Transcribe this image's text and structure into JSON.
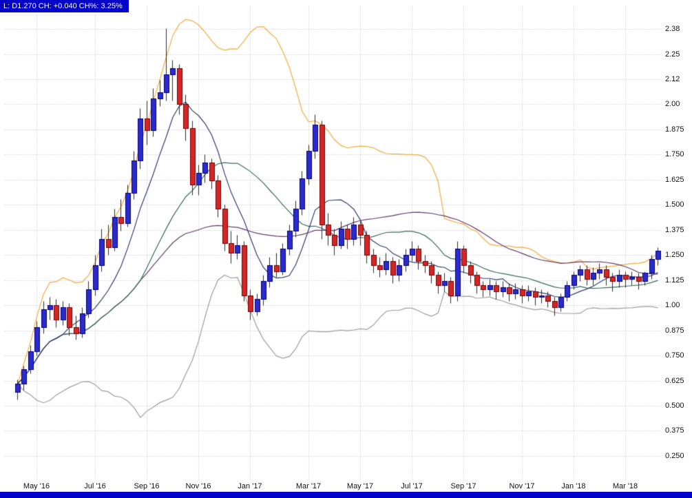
{
  "header": {
    "quote_line": "L: D1.270 CH: +0.040 CH%: 3.25%",
    "badge_bg": "#0000c8"
  },
  "chart_data": {
    "type": "candlestick",
    "title": "",
    "ohlc_format": [
      "open",
      "high",
      "low",
      "close"
    ],
    "last": {
      "price": "1.270",
      "change": "+0.040",
      "change_pct": "3.25%"
    },
    "ylim": [
      0.133,
      2.492
    ],
    "grid": true,
    "y_ticks": [
      {
        "label": "2.38",
        "value": 2.375
      },
      {
        "label": "2.25",
        "value": 2.25
      },
      {
        "label": "2.12",
        "value": 2.125
      },
      {
        "label": "2.00",
        "value": 2.0
      },
      {
        "label": "1.875",
        "value": 1.875
      },
      {
        "label": "1.750",
        "value": 1.75
      },
      {
        "label": "1.625",
        "value": 1.625
      },
      {
        "label": "1.500",
        "value": 1.5
      },
      {
        "label": "1.375",
        "value": 1.375
      },
      {
        "label": "1.250",
        "value": 1.25
      },
      {
        "label": "1.125",
        "value": 1.125
      },
      {
        "label": "1.00",
        "value": 1.0
      },
      {
        "label": "0.875",
        "value": 0.875
      },
      {
        "label": "0.750",
        "value": 0.75
      },
      {
        "label": "0.625",
        "value": 0.625
      },
      {
        "label": "0.500",
        "value": 0.5
      },
      {
        "label": "0.375",
        "value": 0.375
      },
      {
        "label": "0.250",
        "value": 0.25
      }
    ],
    "x_labels": [
      {
        "label": "May '16",
        "index": 3
      },
      {
        "label": "Jul '16",
        "index": 12
      },
      {
        "label": "Sep '16",
        "index": 20
      },
      {
        "label": "Nov '16",
        "index": 28
      },
      {
        "label": "Jan '17",
        "index": 36
      },
      {
        "label": "Mar '17",
        "index": 45
      },
      {
        "label": "May '17",
        "index": 53
      },
      {
        "label": "Jul '17",
        "index": 61
      },
      {
        "label": "Sep '17",
        "index": 69
      },
      {
        "label": "Nov '17",
        "index": 78
      },
      {
        "label": "Jan '18",
        "index": 86
      },
      {
        "label": "Mar '18",
        "index": 94
      }
    ],
    "indicators": [
      {
        "name": "bollinger-lower",
        "type": "bollinger_lower",
        "period": 20,
        "stddev": 2,
        "color": "#9c9c9c"
      },
      {
        "name": "bollinger-upper",
        "type": "bollinger_upper",
        "period": 20,
        "stddev": 2,
        "color": "#f6a93b"
      },
      {
        "name": "sma-50",
        "type": "sma",
        "period": 50,
        "color": "#5d3a68"
      },
      {
        "name": "sma-20",
        "type": "sma",
        "period": 20,
        "color": "#35695c"
      },
      {
        "name": "sma-8",
        "type": "sma",
        "period": 8,
        "color": "#2e3e68"
      }
    ],
    "colors": {
      "up_fill": "#2b2bcb",
      "up_stroke": "#000080",
      "down_fill": "#d32626",
      "down_stroke": "#7a0000",
      "wick": "#2a2a2a",
      "grid": "#bdbdbd"
    },
    "candles": [
      [
        0.57,
        0.63,
        0.53,
        0.61
      ],
      [
        0.61,
        0.7,
        0.58,
        0.68
      ],
      [
        0.68,
        0.8,
        0.66,
        0.77
      ],
      [
        0.77,
        0.92,
        0.75,
        0.89
      ],
      [
        0.89,
        1.02,
        0.86,
        0.98
      ],
      [
        0.98,
        1.04,
        0.93,
        1.0
      ],
      [
        1.0,
        1.03,
        0.89,
        0.93
      ],
      [
        0.93,
        1.02,
        0.9,
        0.99
      ],
      [
        0.99,
        1.01,
        0.85,
        0.89
      ],
      [
        0.89,
        0.95,
        0.83,
        0.86
      ],
      [
        0.86,
        0.99,
        0.84,
        0.96
      ],
      [
        0.96,
        1.12,
        0.94,
        1.08
      ],
      [
        1.08,
        1.25,
        1.05,
        1.2
      ],
      [
        1.2,
        1.38,
        1.17,
        1.33
      ],
      [
        1.33,
        1.4,
        1.25,
        1.29
      ],
      [
        1.29,
        1.48,
        1.27,
        1.44
      ],
      [
        1.44,
        1.53,
        1.37,
        1.41
      ],
      [
        1.41,
        1.6,
        1.39,
        1.56
      ],
      [
        1.56,
        1.77,
        1.53,
        1.72
      ],
      [
        1.72,
        1.98,
        1.68,
        1.93
      ],
      [
        1.93,
        2.02,
        1.8,
        1.87
      ],
      [
        1.87,
        2.08,
        1.84,
        2.03
      ],
      [
        2.03,
        2.12,
        1.99,
        2.06
      ],
      [
        2.06,
        2.38,
        2.02,
        2.15
      ],
      [
        2.15,
        2.22,
        2.02,
        2.18
      ],
      [
        2.18,
        2.2,
        1.95,
        2.0
      ],
      [
        2.0,
        2.05,
        1.82,
        1.88
      ],
      [
        1.88,
        1.92,
        1.55,
        1.6
      ],
      [
        1.6,
        1.7,
        1.55,
        1.66
      ],
      [
        1.66,
        1.75,
        1.61,
        1.71
      ],
      [
        1.71,
        1.73,
        1.58,
        1.62
      ],
      [
        1.62,
        1.65,
        1.44,
        1.48
      ],
      [
        1.48,
        1.5,
        1.27,
        1.31
      ],
      [
        1.31,
        1.37,
        1.21,
        1.26
      ],
      [
        1.26,
        1.35,
        1.23,
        1.3
      ],
      [
        1.3,
        1.32,
        1.02,
        1.05
      ],
      [
        1.05,
        1.08,
        0.93,
        0.97
      ],
      [
        0.97,
        1.06,
        0.95,
        1.03
      ],
      [
        1.03,
        1.15,
        1.0,
        1.12
      ],
      [
        1.12,
        1.24,
        1.09,
        1.2
      ],
      [
        1.2,
        1.26,
        1.14,
        1.17
      ],
      [
        1.17,
        1.31,
        1.15,
        1.28
      ],
      [
        1.28,
        1.4,
        1.25,
        1.37
      ],
      [
        1.37,
        1.52,
        1.34,
        1.48
      ],
      [
        1.48,
        1.67,
        1.45,
        1.63
      ],
      [
        1.63,
        1.8,
        1.6,
        1.77
      ],
      [
        1.77,
        1.95,
        1.73,
        1.9
      ],
      [
        1.9,
        1.92,
        1.33,
        1.4
      ],
      [
        1.4,
        1.46,
        1.3,
        1.35
      ],
      [
        1.35,
        1.38,
        1.25,
        1.3
      ],
      [
        1.3,
        1.42,
        1.28,
        1.38
      ],
      [
        1.38,
        1.4,
        1.28,
        1.33
      ],
      [
        1.33,
        1.44,
        1.3,
        1.4
      ],
      [
        1.4,
        1.42,
        1.3,
        1.35
      ],
      [
        1.35,
        1.37,
        1.21,
        1.25
      ],
      [
        1.25,
        1.28,
        1.16,
        1.2
      ],
      [
        1.2,
        1.24,
        1.14,
        1.18
      ],
      [
        1.18,
        1.26,
        1.15,
        1.22
      ],
      [
        1.22,
        1.24,
        1.11,
        1.15
      ],
      [
        1.15,
        1.23,
        1.12,
        1.2
      ],
      [
        1.2,
        1.28,
        1.17,
        1.25
      ],
      [
        1.25,
        1.32,
        1.22,
        1.28
      ],
      [
        1.28,
        1.3,
        1.18,
        1.22
      ],
      [
        1.22,
        1.25,
        1.16,
        1.2
      ],
      [
        1.2,
        1.22,
        1.11,
        1.15
      ],
      [
        1.15,
        1.17,
        1.06,
        1.1
      ],
      [
        1.1,
        1.16,
        1.07,
        1.12
      ],
      [
        1.12,
        1.14,
        1.01,
        1.05
      ],
      [
        1.05,
        1.32,
        1.02,
        1.28
      ],
      [
        1.28,
        1.3,
        1.16,
        1.2
      ],
      [
        1.2,
        1.22,
        1.11,
        1.15
      ],
      [
        1.15,
        1.17,
        1.06,
        1.1
      ],
      [
        1.1,
        1.12,
        1.04,
        1.08
      ],
      [
        1.08,
        1.13,
        1.05,
        1.1
      ],
      [
        1.1,
        1.12,
        1.03,
        1.07
      ],
      [
        1.07,
        1.12,
        1.04,
        1.09
      ],
      [
        1.09,
        1.11,
        1.02,
        1.06
      ],
      [
        1.06,
        1.11,
        1.03,
        1.08
      ],
      [
        1.08,
        1.1,
        1.01,
        1.05
      ],
      [
        1.05,
        1.1,
        1.02,
        1.07
      ],
      [
        1.07,
        1.09,
        1.0,
        1.04
      ],
      [
        1.04,
        1.08,
        1.01,
        1.05
      ],
      [
        1.05,
        1.07,
        0.99,
        1.02
      ],
      [
        1.02,
        1.04,
        0.95,
        0.99
      ],
      [
        0.99,
        1.06,
        0.97,
        1.04
      ],
      [
        1.04,
        1.12,
        1.02,
        1.1
      ],
      [
        1.1,
        1.17,
        1.08,
        1.15
      ],
      [
        1.15,
        1.2,
        1.12,
        1.18
      ],
      [
        1.18,
        1.2,
        1.1,
        1.13
      ],
      [
        1.13,
        1.19,
        1.1,
        1.16
      ],
      [
        1.16,
        1.21,
        1.13,
        1.18
      ],
      [
        1.18,
        1.2,
        1.1,
        1.14
      ],
      [
        1.14,
        1.16,
        1.07,
        1.12
      ],
      [
        1.12,
        1.18,
        1.09,
        1.15
      ],
      [
        1.15,
        1.17,
        1.09,
        1.13
      ],
      [
        1.13,
        1.17,
        1.1,
        1.14
      ],
      [
        1.14,
        1.16,
        1.08,
        1.12
      ],
      [
        1.12,
        1.17,
        1.1,
        1.16
      ],
      [
        1.16,
        1.25,
        1.13,
        1.23
      ],
      [
        1.23,
        1.29,
        1.2,
        1.27
      ]
    ]
  }
}
